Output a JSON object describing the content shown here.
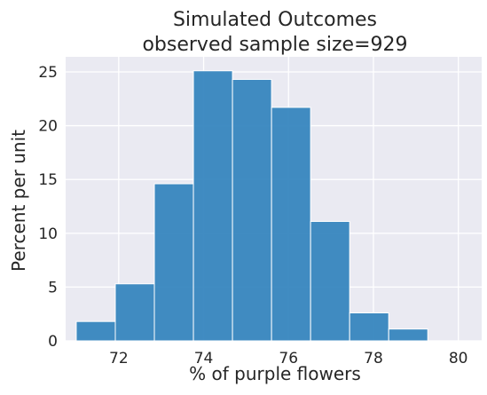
{
  "chart_data": {
    "type": "bar",
    "title_line1": "Simulated Outcomes",
    "title_line2": "observed sample size=929",
    "xlabel": "% of purple flowers",
    "ylabel": "Percent per unit",
    "xlim": [
      70.75,
      80.55
    ],
    "ylim": [
      0,
      26.4
    ],
    "xticks": [
      72,
      74,
      76,
      78,
      80
    ],
    "yticks": [
      0,
      5,
      10,
      15,
      20,
      25
    ],
    "bins": [
      {
        "left": 71.0,
        "right": 71.92,
        "value": 1.8
      },
      {
        "left": 71.92,
        "right": 72.84,
        "value": 5.3
      },
      {
        "left": 72.84,
        "right": 73.76,
        "value": 14.6
      },
      {
        "left": 73.76,
        "right": 74.68,
        "value": 25.1
      },
      {
        "left": 74.68,
        "right": 75.6,
        "value": 24.3
      },
      {
        "left": 75.6,
        "right": 76.52,
        "value": 21.7
      },
      {
        "left": 76.52,
        "right": 77.44,
        "value": 11.1
      },
      {
        "left": 77.44,
        "right": 78.36,
        "value": 2.6
      },
      {
        "left": 78.36,
        "right": 79.28,
        "value": 1.1
      }
    ],
    "grid": true,
    "colors": {
      "bar_fill": "#3182bd",
      "bar_edge": "#ffffff",
      "plot_background": "#eaeaf2",
      "grid": "#ffffff",
      "text": "#262626"
    }
  }
}
